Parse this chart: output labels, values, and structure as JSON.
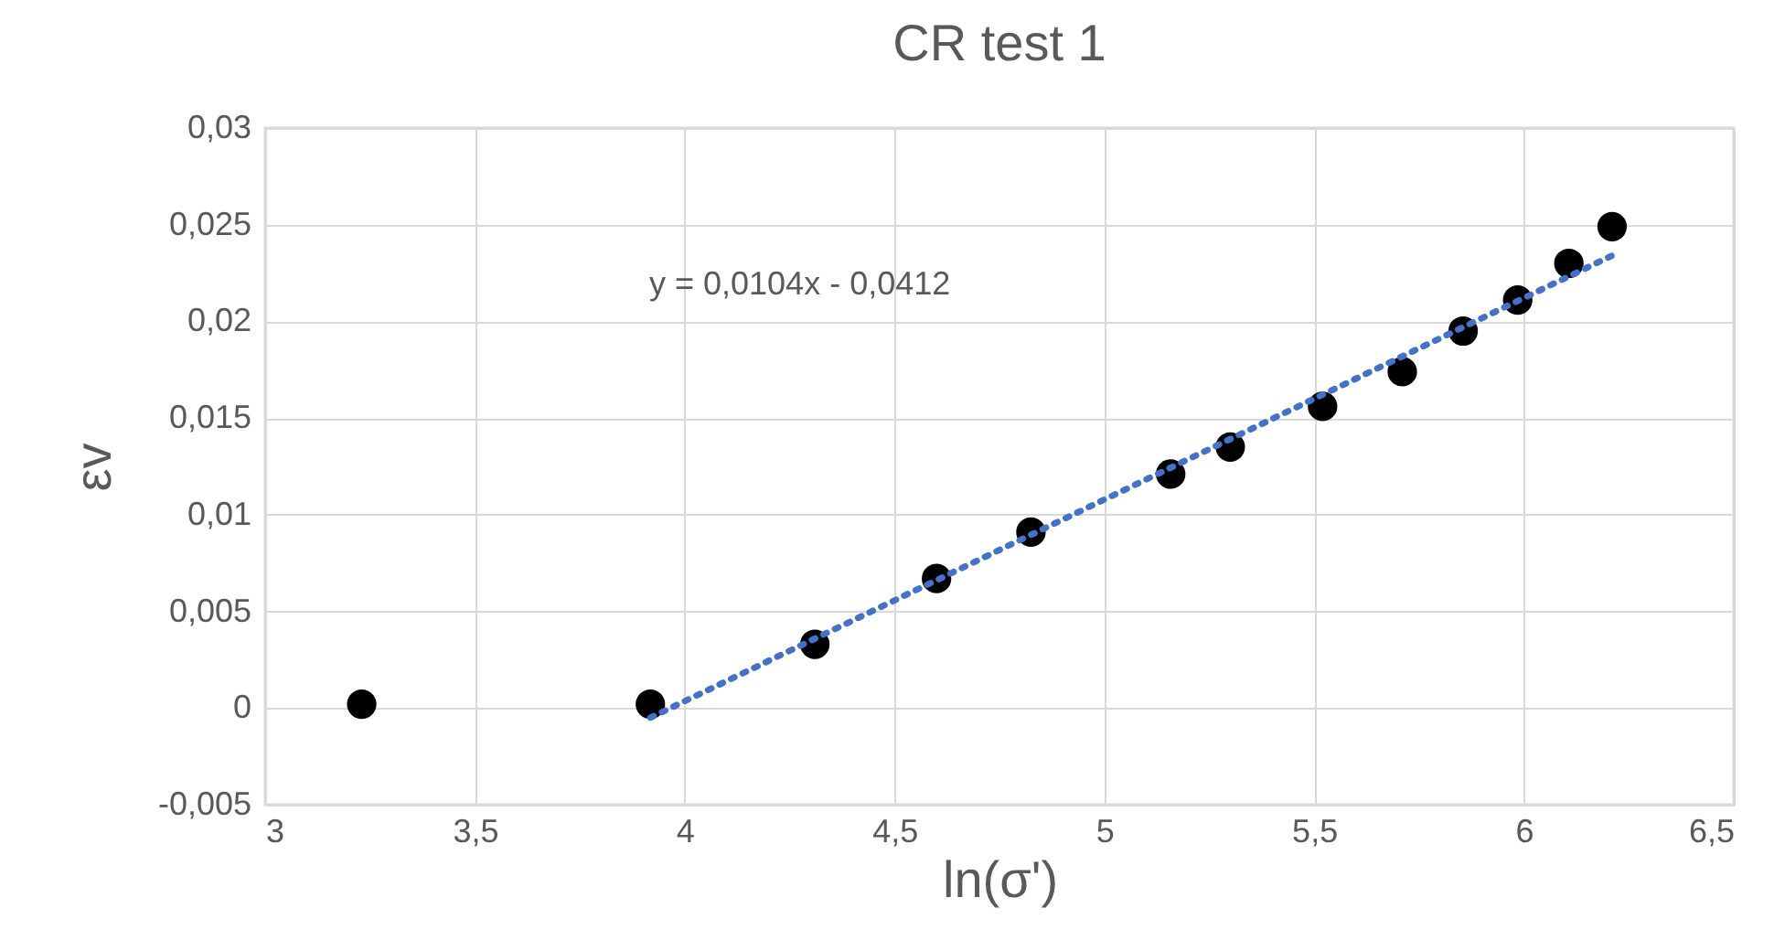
{
  "chart_data": {
    "type": "scatter",
    "title": "CR test 1",
    "xlabel": "ln(σ')",
    "ylabel": "εv",
    "xlim": [
      3,
      6.5
    ],
    "ylim": [
      -0.005,
      0.03
    ],
    "xticks": [
      3,
      {
        "value": 3.5,
        "label": "3,5"
      },
      4,
      {
        "value": 4.5,
        "label": "4,5"
      },
      5,
      {
        "value": 5.5,
        "label": "5,5"
      },
      6,
      {
        "value": 6.5,
        "label": "6,5"
      }
    ],
    "yticks": [
      {
        "value": -0.005,
        "label": "-0,005"
      },
      0,
      {
        "value": 0.005,
        "label": "0,005"
      },
      {
        "value": 0.01,
        "label": "0,01"
      },
      {
        "value": 0.015,
        "label": "0,015"
      },
      {
        "value": 0.02,
        "label": "0,02"
      },
      {
        "value": 0.025,
        "label": "0,025"
      },
      {
        "value": 0.03,
        "label": "0,03"
      }
    ],
    "grid": true,
    "annotations": [
      "y = 0,0104x - 0,0412"
    ],
    "series": [
      {
        "color": "#000000",
        "marker": "circle",
        "x": [
          3.23,
          3.918,
          4.31,
          4.6,
          4.825,
          5.158,
          5.3,
          5.52,
          5.71,
          5.855,
          5.985,
          6.107,
          6.21
        ],
        "values": [
          0.0002,
          0.0002,
          0.0033,
          0.0067,
          0.0091,
          0.0121,
          0.0135,
          0.0156,
          0.0174,
          0.0195,
          0.0211,
          0.023,
          0.0249
        ]
      },
      {
        "type": "line",
        "color": "#4472c4",
        "line_style": "dotted",
        "x": [
          3.918,
          6.21
        ],
        "values": [
          -0.0005,
          0.0234
        ]
      }
    ]
  }
}
